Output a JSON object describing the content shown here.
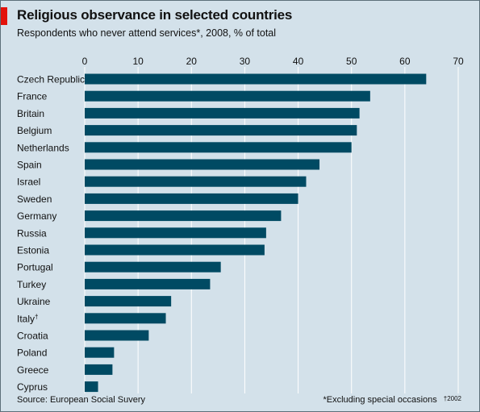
{
  "header": {
    "title": "Religious observance in selected countries",
    "subtitle": "Respondents who never attend services*, 2008, % of total"
  },
  "footer": {
    "source": "Source: European Social Suvery",
    "note": "*Excluding special occasions",
    "dagger_note": "†2002"
  },
  "colors": {
    "background": "#d3e1ea",
    "bar": "#004a63",
    "gridline": "#ffffff",
    "accent": "#e3120b"
  },
  "chart_data": {
    "type": "bar",
    "orientation": "horizontal",
    "title": "Religious observance in selected countries",
    "subtitle": "Respondents who never attend services*, 2008, % of total",
    "categories": [
      "Czech Republic",
      "France",
      "Britain",
      "Belgium",
      "Netherlands",
      "Spain",
      "Israel",
      "Sweden",
      "Germany",
      "Russia",
      "Estonia",
      "Portugal",
      "Turkey",
      "Ukraine",
      "Italy",
      "Croatia",
      "Poland",
      "Greece",
      "Cyprus"
    ],
    "category_marks": [
      "",
      "",
      "",
      "",
      "",
      "",
      "",
      "",
      "",
      "",
      "",
      "",
      "",
      "",
      "†",
      "",
      "",
      "",
      ""
    ],
    "values": [
      64,
      53.5,
      51.5,
      51,
      50,
      44,
      41.5,
      40,
      36.8,
      34,
      33.7,
      25.5,
      23.5,
      16.2,
      15.2,
      12,
      5.5,
      5.2,
      2.5
    ],
    "xlim": [
      0,
      70
    ],
    "ticks": [
      0,
      10,
      20,
      30,
      40,
      50,
      60,
      70
    ],
    "tick_position": "top",
    "grid": true
  }
}
